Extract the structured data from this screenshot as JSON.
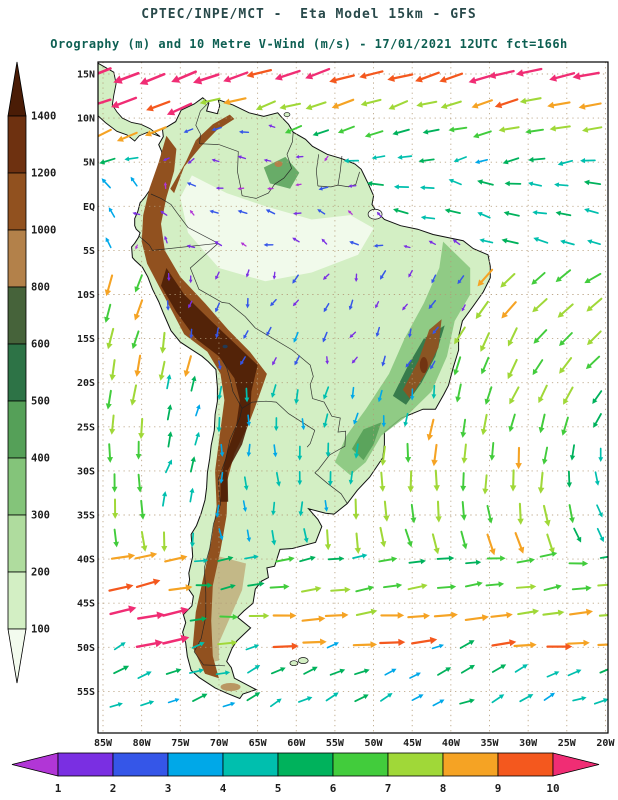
{
  "header": {
    "title_line1": "CPTEC/INPE/MCT -  Eta Model 15km - GFS",
    "title_line2": "Orography (m) and 10 Metre V-Wind (m/s) - 17/01/2021 12UTC fct=166h"
  },
  "colors": {
    "title_primary": "#28494a",
    "title_secondary": "#0d5f52",
    "axis_label": "#1c1c1c",
    "frame": "#000000",
    "coastline": "#101010",
    "country_border": "#222222",
    "grid_dots": "#b39b78",
    "lake": "#223a55"
  },
  "chart_data": {
    "type": "heatmap",
    "subtype": "geographic map: shaded orography with 10 m wind vector field over South America",
    "source": "CPTEC/INPE/MCT",
    "model": "Eta Model 15km - GFS",
    "shaded_field": {
      "name": "Orography",
      "units": "m"
    },
    "vector_field": {
      "name": "10 Metre V-Wind",
      "units": "m/s"
    },
    "valid_time": "17/01/2021 12UTC",
    "forecast": "fct=166h",
    "lat_axis": {
      "labels": [
        "15N",
        "10N",
        "5N",
        "EQ",
        "5S",
        "10S",
        "15S",
        "20S",
        "25S",
        "30S",
        "35S",
        "40S",
        "45S",
        "50S",
        "55S"
      ]
    },
    "lon_axis": {
      "labels": [
        "85W",
        "80W",
        "75W",
        "70W",
        "65W",
        "60W",
        "55W",
        "50W",
        "45W",
        "40W",
        "35W",
        "30W",
        "25W",
        "20W"
      ]
    },
    "orography_scale": {
      "units": "m",
      "boundary_labels_top_to_bottom": [
        "1400",
        "1200",
        "1000",
        "800",
        "600",
        "500",
        "400",
        "300",
        "200",
        "100"
      ],
      "segment_colors_top_to_bottom": [
        "#4a1c06",
        "#6e3110",
        "#91511f",
        "#b3814a",
        "#46633a",
        "#2d7346",
        "#55a058",
        "#84c47a",
        "#afdc9e",
        "#d3efc4",
        "#f3fbee"
      ]
    },
    "wind_scale": {
      "units": "m/s",
      "boundary_labels_left_to_right": [
        "1",
        "2",
        "3",
        "4",
        "5",
        "6",
        "7",
        "8",
        "9",
        "10"
      ],
      "segment_colors_left_to_right": [
        "#b136d6",
        "#7a2fe2",
        "#3556e8",
        "#00a8e8",
        "#00bfae",
        "#00b25c",
        "#42cc3c",
        "#a0d838",
        "#f5a324",
        "#f4581e",
        "#f02d74"
      ]
    },
    "wind_features": [
      "strong easterly trade winds (7-10+ m/s) over the tropical North Atlantic and Caribbean pointing west",
      "weak winds (1-3 m/s, purple/cyan arrows) over the Amazon basin interior",
      "South Atlantic subtropical anticyclone circulation off the Brazilian coast (4-8 m/s)",
      "strong westerlies (8-10+ m/s, red/magenta arrows) over the southeast Pacific near 40S",
      "moderate southerly winds (green arrows) northward along the Chilean coast",
      "moderate eastward flow (4-6 m/s, green arrows) south of 50S"
    ]
  }
}
